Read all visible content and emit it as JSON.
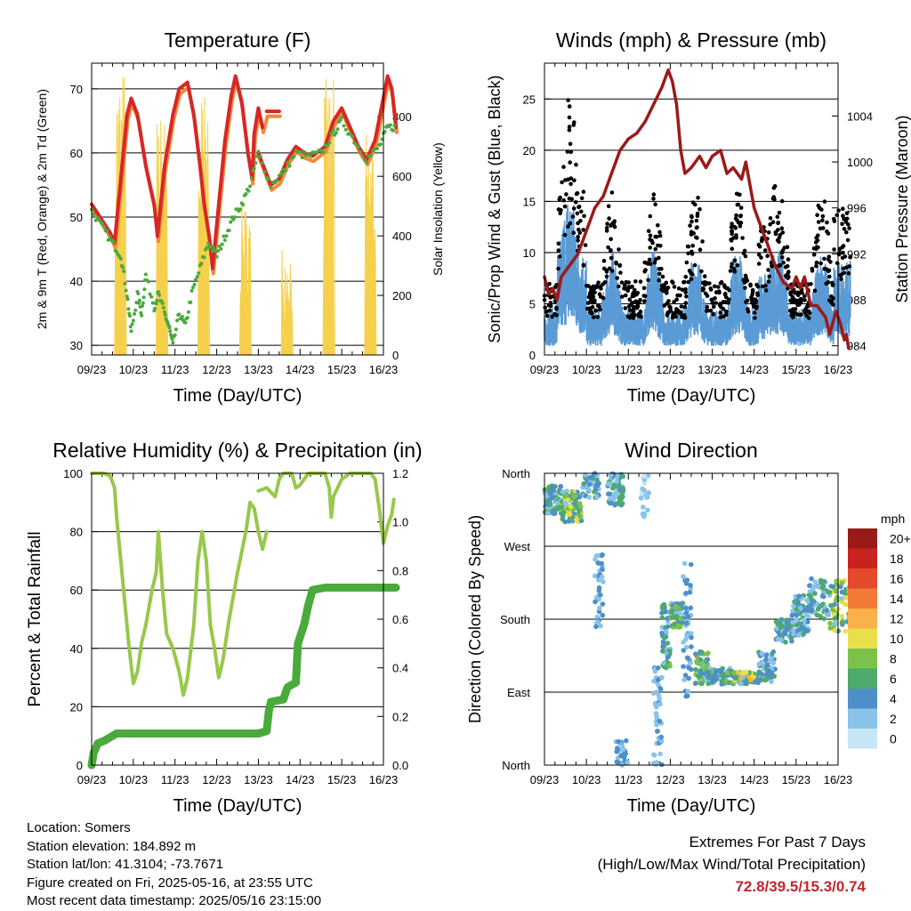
{
  "x_ticks": [
    "09/23",
    "10/23",
    "11/23",
    "12/23",
    "13/23",
    "14/23",
    "15/23",
    "16/23"
  ],
  "x_title": "Time (Day/UTC)",
  "chart_data": [
    {
      "id": "temperature",
      "type": "line",
      "title": "Temperature (F)",
      "ylabel": "2m & 9m T (Red, Orange) & 2m Td (Green)",
      "y2label": "Solar Insolation (Yellow)",
      "ylim": [
        28.5,
        74
      ],
      "y_ticks": [
        30,
        40,
        50,
        60,
        70
      ],
      "y2lim": [
        0,
        980
      ],
      "y2_ticks": [
        0,
        200,
        400,
        600,
        800
      ],
      "xlim": [
        9,
        16
      ],
      "series": [
        {
          "axis": "left",
          "color": "#d62728",
          "width": 4,
          "points": [
            [
              9.0,
              52
            ],
            [
              9.2,
              50
            ],
            [
              9.45,
              47.5
            ],
            [
              9.55,
              46
            ],
            [
              9.7,
              56
            ],
            [
              9.85,
              66
            ],
            [
              9.95,
              68.5
            ],
            [
              10.1,
              66
            ],
            [
              10.3,
              58
            ],
            [
              10.5,
              52
            ],
            [
              10.58,
              47
            ],
            [
              10.75,
              58
            ],
            [
              10.95,
              66
            ],
            [
              11.1,
              70
            ],
            [
              11.3,
              71
            ],
            [
              11.45,
              66
            ],
            [
              11.6,
              58
            ],
            [
              11.7,
              52
            ],
            [
              11.82,
              47
            ],
            [
              11.9,
              42
            ],
            [
              12.05,
              52
            ],
            [
              12.2,
              62
            ],
            [
              12.35,
              69
            ],
            [
              12.45,
              72
            ],
            [
              12.6,
              68
            ],
            [
              12.75,
              60
            ],
            [
              12.85,
              56
            ],
            [
              12.9,
              63
            ],
            [
              13.0,
              67
            ],
            [
              13.1,
              64
            ],
            [
              13.2,
              66.5
            ],
            [
              13.5,
              66.5
            ]
          ],
          "breaks": [
            [
              12.92,
              12.96
            ]
          ]
        },
        {
          "axis": "left",
          "color": "#d62728",
          "width": 4,
          "points": [
            [
              13.0,
              60
            ],
            [
              13.3,
              55
            ],
            [
              13.5,
              56
            ],
            [
              13.7,
              59
            ],
            [
              13.9,
              61
            ],
            [
              14.1,
              60
            ],
            [
              14.3,
              59.5
            ],
            [
              14.6,
              61
            ],
            [
              14.8,
              65
            ],
            [
              15.0,
              67
            ],
            [
              15.2,
              64
            ],
            [
              15.4,
              61
            ],
            [
              15.6,
              59
            ],
            [
              15.8,
              62
            ],
            [
              15.95,
              67
            ],
            [
              16.1,
              72
            ],
            [
              16.2,
              70
            ],
            [
              16.3,
              64
            ]
          ]
        },
        {
          "axis": "left",
          "color": "#4aaa3c",
          "width": 3.5,
          "dots": true,
          "points": [
            [
              9.0,
              51
            ],
            [
              9.3,
              48
            ],
            [
              9.5,
              46
            ],
            [
              9.7,
              44
            ],
            [
              9.85,
              38
            ],
            [
              9.95,
              32
            ],
            [
              10.1,
              38
            ],
            [
              10.2,
              35
            ],
            [
              10.3,
              41
            ],
            [
              10.5,
              36
            ],
            [
              10.6,
              38
            ],
            [
              10.75,
              35
            ],
            [
              10.85,
              33
            ],
            [
              10.95,
              30
            ],
            [
              11.1,
              35
            ],
            [
              11.25,
              33
            ],
            [
              11.4,
              38
            ],
            [
              11.6,
              42
            ],
            [
              11.8,
              46
            ],
            [
              12.0,
              44
            ],
            [
              12.2,
              47
            ],
            [
              12.4,
              50
            ],
            [
              12.6,
              52
            ],
            [
              12.8,
              55
            ],
            [
              13.0,
              60
            ],
            [
              13.3,
              55
            ],
            [
              13.6,
              57
            ],
            [
              13.9,
              60
            ],
            [
              14.2,
              59.5
            ],
            [
              14.5,
              60
            ],
            [
              14.8,
              63
            ],
            [
              15.0,
              65
            ],
            [
              15.3,
              62
            ],
            [
              15.6,
              59
            ],
            [
              15.9,
              61
            ],
            [
              16.1,
              64
            ],
            [
              16.3,
              64
            ]
          ]
        },
        {
          "axis": "right",
          "color": "#f5d04b",
          "width": 1.2,
          "points": []
        }
      ]
    },
    {
      "id": "winds",
      "type": "scatter",
      "title": "Winds (mph) & Pressure (mb)",
      "ylabel": "Sonic/Prop Wind & Gust (Blue, Black)",
      "y2label": "Station Pressure (Maroon)",
      "ylim": [
        0,
        28.5
      ],
      "y_ticks": [
        0,
        5,
        10,
        15,
        20,
        25
      ],
      "y2lim": [
        983.2,
        1008.6
      ],
      "y2_ticks": [
        984,
        988,
        992,
        996,
        1000,
        1004
      ],
      "xlim": [
        9,
        16
      ],
      "series": [
        {
          "axis": "left",
          "color": "#5b9bd5",
          "name": "",
          "points": []
        },
        {
          "axis": "left",
          "color": "#000000",
          "name": "",
          "points": []
        },
        {
          "axis": "right",
          "color": "#9b1a1a",
          "width": 3.5,
          "points": [
            [
              9.0,
              990
            ],
            [
              9.1,
              988.5
            ],
            [
              9.2,
              989
            ],
            [
              9.3,
              988
            ],
            [
              9.4,
              990
            ],
            [
              9.6,
              991
            ],
            [
              9.8,
              992
            ],
            [
              10.0,
              994
            ],
            [
              10.2,
              996
            ],
            [
              10.4,
              997
            ],
            [
              10.6,
              999
            ],
            [
              10.8,
              1001
            ],
            [
              11.0,
              1002
            ],
            [
              11.2,
              1002.5
            ],
            [
              11.4,
              1003.5
            ],
            [
              11.6,
              1005
            ],
            [
              11.8,
              1006.5
            ],
            [
              11.95,
              1008
            ],
            [
              12.05,
              1007
            ],
            [
              12.15,
              1005
            ],
            [
              12.25,
              1001
            ],
            [
              12.35,
              999
            ],
            [
              12.5,
              999.5
            ],
            [
              12.7,
              1000.5
            ],
            [
              12.85,
              999.5
            ],
            [
              13.0,
              1000.5
            ],
            [
              13.2,
              1001
            ],
            [
              13.35,
              999
            ],
            [
              13.5,
              999.5
            ],
            [
              13.7,
              998.5
            ],
            [
              13.8,
              1000
            ],
            [
              13.9,
              998
            ],
            [
              14.0,
              996
            ],
            [
              14.1,
              995
            ],
            [
              14.3,
              993
            ],
            [
              14.5,
              991
            ],
            [
              14.7,
              989.5
            ],
            [
              14.9,
              989
            ],
            [
              15.0,
              990
            ],
            [
              15.1,
              989
            ],
            [
              15.2,
              990
            ],
            [
              15.35,
              987.5
            ],
            [
              15.5,
              987.5
            ],
            [
              15.7,
              986.5
            ],
            [
              15.8,
              985
            ],
            [
              15.95,
              987
            ],
            [
              16.05,
              986
            ],
            [
              16.15,
              984.5
            ],
            [
              16.2,
              985
            ],
            [
              16.25,
              983.8
            ]
          ]
        }
      ]
    },
    {
      "id": "humidity",
      "type": "line",
      "title": "Relative Humidity (%) & Precipitation (in)",
      "ylabel": "Percent & Total Rainfall",
      "ylim": [
        0,
        100
      ],
      "y_ticks": [
        0,
        20,
        40,
        60,
        80,
        100
      ],
      "y2lim": [
        0,
        1.2
      ],
      "y2_ticks": [
        0.0,
        0.2,
        0.4,
        0.6,
        0.8,
        1.0,
        1.2
      ],
      "xlim": [
        9,
        16
      ],
      "series": [
        {
          "axis": "left",
          "color": "#98c84c",
          "width": 4,
          "points": [
            [
              9.0,
              100
            ],
            [
              9.3,
              100
            ],
            [
              9.45,
              99
            ],
            [
              9.55,
              95
            ],
            [
              9.6,
              85
            ],
            [
              9.7,
              70
            ],
            [
              9.8,
              55
            ],
            [
              9.9,
              40
            ],
            [
              10.0,
              28
            ],
            [
              10.1,
              32
            ],
            [
              10.2,
              42
            ],
            [
              10.3,
              48
            ],
            [
              10.45,
              60
            ],
            [
              10.55,
              66
            ],
            [
              10.6,
              80
            ],
            [
              10.7,
              60
            ],
            [
              10.8,
              45
            ],
            [
              10.95,
              40
            ],
            [
              11.1,
              32
            ],
            [
              11.2,
              24
            ],
            [
              11.3,
              30
            ],
            [
              11.45,
              48
            ],
            [
              11.55,
              70
            ],
            [
              11.65,
              80
            ],
            [
              11.75,
              70
            ],
            [
              11.85,
              48
            ],
            [
              11.95,
              40
            ],
            [
              12.05,
              30
            ],
            [
              12.15,
              36
            ],
            [
              12.3,
              50
            ],
            [
              12.5,
              66
            ],
            [
              12.7,
              80
            ],
            [
              12.8,
              90
            ],
            [
              12.9,
              88
            ],
            [
              13.0,
              80
            ],
            [
              13.1,
              74
            ],
            [
              13.2,
              80
            ]
          ],
          "breaks": []
        },
        {
          "axis": "left",
          "color": "#98c84c",
          "width": 4,
          "points": [
            [
              13.0,
              94
            ],
            [
              13.2,
              95
            ],
            [
              13.4,
              92
            ],
            [
              13.5,
              98
            ],
            [
              13.6,
              100
            ],
            [
              13.8,
              100
            ],
            [
              13.9,
              95
            ],
            [
              14.0,
              96
            ],
            [
              14.2,
              100
            ],
            [
              14.5,
              100
            ],
            [
              14.6,
              100
            ],
            [
              14.7,
              95
            ],
            [
              14.75,
              85
            ],
            [
              14.8,
              92
            ],
            [
              15.0,
              98
            ],
            [
              15.2,
              100
            ],
            [
              15.7,
              100
            ],
            [
              15.8,
              98
            ],
            [
              15.9,
              88
            ],
            [
              16.0,
              76
            ],
            [
              16.1,
              82
            ],
            [
              16.2,
              86
            ],
            [
              16.25,
              91
            ]
          ]
        },
        {
          "axis": "right",
          "color": "#4aaa3c",
          "width": 9,
          "points": [
            [
              9.0,
              0.0
            ],
            [
              9.05,
              0.05
            ],
            [
              9.15,
              0.09
            ],
            [
              9.3,
              0.1
            ],
            [
              9.6,
              0.13
            ],
            [
              10.0,
              0.13
            ],
            [
              11.0,
              0.13
            ],
            [
              12.0,
              0.13
            ],
            [
              13.0,
              0.13
            ],
            [
              13.2,
              0.14
            ],
            [
              13.25,
              0.22
            ],
            [
              13.3,
              0.26
            ],
            [
              13.6,
              0.27
            ],
            [
              13.7,
              0.32
            ],
            [
              13.9,
              0.34
            ],
            [
              13.95,
              0.5
            ],
            [
              14.1,
              0.58
            ],
            [
              14.2,
              0.66
            ],
            [
              14.3,
              0.72
            ],
            [
              14.6,
              0.73
            ],
            [
              16.3,
              0.73
            ]
          ]
        }
      ]
    },
    {
      "id": "wind_direction",
      "type": "scatter",
      "title": "Wind Direction",
      "ylabel": "Direction (Colored By Speed)",
      "y_ticks": [
        "North",
        "East",
        "South",
        "West",
        "North"
      ],
      "ylim": [
        0,
        360
      ],
      "xlim": [
        9,
        16
      ],
      "colorbar_title": "mph",
      "colorbar_labels": [
        "0",
        "2",
        "4",
        "6",
        "8",
        "10",
        "12",
        "14",
        "16",
        "18",
        "20+"
      ],
      "colorbar_colors": [
        "#c6e6f7",
        "#89c3ea",
        "#4e8fc9",
        "#4daa6c",
        "#7cc24a",
        "#e8df4b",
        "#fab04b",
        "#f27a35",
        "#e44a2b",
        "#c9231f",
        "#9a1a1a"
      ],
      "points": []
    }
  ],
  "info": {
    "location": "Location: Somers",
    "elevation": "Station elevation: 184.892 m",
    "latlon": "Station lat/lon: 41.3104; -73.7671",
    "created": "Figure created on Fri, 2025-05-16, at 23:55 UTC",
    "recent": "Most recent data timestamp: 2025/05/16 23:15:00"
  },
  "extremes": {
    "line1": "Extremes For Past 7 Days",
    "line2": "(High/Low/Max Wind/Total Precipitation)",
    "values": "72.8/39.5/15.3/0.74"
  }
}
